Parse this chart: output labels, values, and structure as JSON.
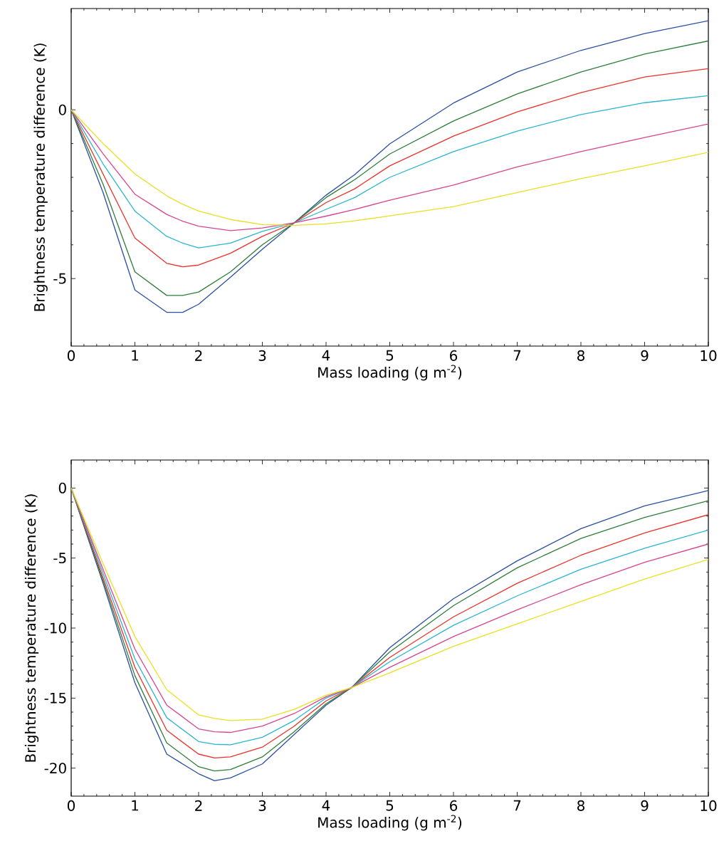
{
  "chart_data": [
    {
      "type": "line",
      "xlabel": "Mass loading (g m$^{-2}$)",
      "ylabel": "Brightness temperature difference (K)",
      "x": [
        0,
        0.5,
        1,
        1.5,
        1.75,
        2,
        2.5,
        3,
        3.5,
        4,
        4.45,
        5,
        6,
        7,
        8,
        9,
        10
      ],
      "xlim": [
        0,
        10
      ],
      "ylim": [
        -7,
        3
      ],
      "xticks": [
        0,
        1,
        2,
        3,
        4,
        5,
        6,
        7,
        8,
        9,
        10
      ],
      "yticks": [
        -5,
        0
      ],
      "series": [
        {
          "color": "#2a4fa0",
          "values": [
            0,
            -2.45,
            -5.34,
            -6.0,
            -6.0,
            -5.76,
            -4.96,
            -4.13,
            -3.35,
            -2.53,
            -1.92,
            -1.01,
            0.2,
            1.12,
            1.76,
            2.26,
            2.64
          ]
        },
        {
          "color": "#2e7d3a",
          "values": [
            0,
            -2.2,
            -4.8,
            -5.5,
            -5.5,
            -5.4,
            -4.8,
            -4.0,
            -3.35,
            -2.6,
            -2.07,
            -1.31,
            -0.33,
            0.47,
            1.12,
            1.65,
            2.04
          ]
        },
        {
          "color": "#e8332a",
          "values": [
            0,
            -1.9,
            -3.8,
            -4.55,
            -4.65,
            -4.6,
            -4.25,
            -3.75,
            -3.35,
            -2.75,
            -2.34,
            -1.66,
            -0.78,
            -0.06,
            0.51,
            0.97,
            1.22
          ]
        },
        {
          "color": "#2ab5d0",
          "values": [
            0,
            -1.6,
            -3.0,
            -3.75,
            -3.95,
            -4.09,
            -3.95,
            -3.6,
            -3.35,
            -2.95,
            -2.6,
            -2.0,
            -1.24,
            -0.63,
            -0.14,
            0.21,
            0.42
          ]
        },
        {
          "color": "#d9448f",
          "values": [
            0,
            -1.3,
            -2.5,
            -3.1,
            -3.3,
            -3.45,
            -3.58,
            -3.5,
            -3.35,
            -3.15,
            -2.95,
            -2.68,
            -2.23,
            -1.69,
            -1.24,
            -0.82,
            -0.42
          ]
        },
        {
          "color": "#e8e020",
          "values": [
            0,
            -1.0,
            -1.9,
            -2.55,
            -2.8,
            -3.0,
            -3.25,
            -3.4,
            -3.42,
            -3.38,
            -3.29,
            -3.14,
            -2.87,
            -2.45,
            -2.04,
            -1.66,
            -1.26
          ]
        }
      ]
    },
    {
      "type": "line",
      "xlabel": "Mass loading (g m$^{-2}$)",
      "ylabel": "Brightness temperature difference (K)",
      "x": [
        0,
        0.5,
        1,
        1.5,
        2,
        2.25,
        2.5,
        3,
        3.5,
        4,
        4.4,
        5,
        6,
        7,
        8,
        9,
        10
      ],
      "xlim": [
        0,
        10
      ],
      "ylim": [
        -22,
        2
      ],
      "xticks": [
        0,
        1,
        2,
        3,
        4,
        5,
        6,
        7,
        8,
        9,
        10
      ],
      "yticks": [
        -20,
        -15,
        -10,
        -5,
        0
      ],
      "series": [
        {
          "color": "#2a4fa0",
          "values": [
            0,
            -6.8,
            -13.9,
            -19.0,
            -20.4,
            -20.9,
            -20.7,
            -19.7,
            -17.6,
            -15.5,
            -14.25,
            -11.4,
            -7.9,
            -5.2,
            -2.9,
            -1.27,
            -0.18
          ]
        },
        {
          "color": "#2e7d3a",
          "values": [
            0,
            -6.6,
            -13.4,
            -18.2,
            -19.9,
            -20.2,
            -20.1,
            -19.2,
            -17.4,
            -15.4,
            -14.25,
            -11.7,
            -8.4,
            -5.7,
            -3.6,
            -2.1,
            -0.9
          ]
        },
        {
          "color": "#e8332a",
          "values": [
            0,
            -6.4,
            -12.8,
            -17.3,
            -19.0,
            -19.27,
            -19.2,
            -18.5,
            -17.0,
            -15.2,
            -14.25,
            -12.1,
            -9.2,
            -6.8,
            -4.8,
            -3.2,
            -1.9
          ]
        },
        {
          "color": "#2ab5d0",
          "values": [
            0,
            -6.1,
            -12.2,
            -16.4,
            -18.1,
            -18.3,
            -18.33,
            -17.8,
            -16.6,
            -15.0,
            -14.25,
            -12.4,
            -9.8,
            -7.7,
            -5.8,
            -4.3,
            -3.0
          ]
        },
        {
          "color": "#d9448f",
          "values": [
            0,
            -5.8,
            -11.5,
            -15.5,
            -17.2,
            -17.4,
            -17.45,
            -17.0,
            -16.1,
            -14.9,
            -14.25,
            -12.8,
            -10.6,
            -8.7,
            -6.9,
            -5.3,
            -4.0
          ]
        },
        {
          "color": "#e8e020",
          "values": [
            0,
            -5.4,
            -10.6,
            -14.4,
            -16.2,
            -16.45,
            -16.6,
            -16.5,
            -15.8,
            -14.8,
            -14.25,
            -13.2,
            -11.3,
            -9.7,
            -8.1,
            -6.5,
            -5.1
          ]
        }
      ]
    }
  ]
}
